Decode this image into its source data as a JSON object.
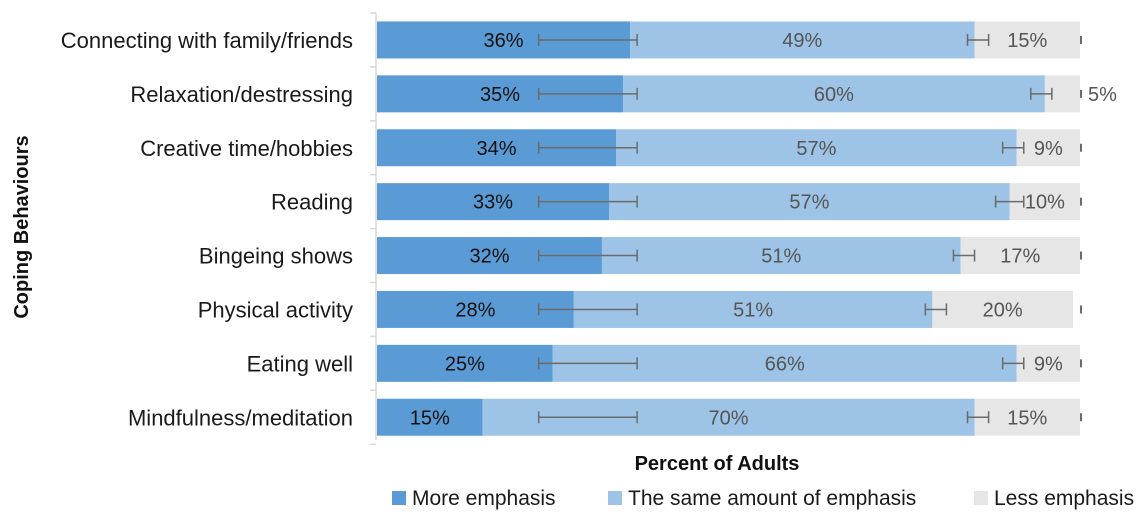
{
  "chart_data": {
    "type": "bar",
    "orientation": "horizontal",
    "stacked": true,
    "xlabel": "Percent of Adults",
    "ylabel": "Coping Behaviours",
    "xlim": [
      0,
      100
    ],
    "grid": false,
    "legend_position": "bottom",
    "categories": [
      "Connecting with family/friends",
      "Relaxation/destressing",
      "Creative time/hobbies",
      "Reading",
      "Bingeing shows",
      "Physical activity",
      "Eating well",
      "Mindfulness/meditation"
    ],
    "series": [
      {
        "name": "More emphasis",
        "color": "#5b9bd5",
        "values": [
          36,
          35,
          34,
          33,
          32,
          28,
          25,
          15
        ],
        "labels": [
          "36%",
          "35%",
          "34%",
          "33%",
          "32%",
          "28%",
          "25%",
          "15%"
        ],
        "error_low": [
          23,
          23,
          23,
          23,
          23,
          23,
          23,
          23
        ],
        "error_high": [
          37,
          37,
          37,
          37,
          37,
          37,
          37,
          37
        ]
      },
      {
        "name": "The same amount of emphasis",
        "color": "#9dc3e6",
        "values": [
          49,
          60,
          57,
          57,
          51,
          51,
          66,
          70
        ],
        "labels": [
          "49%",
          "60%",
          "57%",
          "57%",
          "51%",
          "51%",
          "66%",
          "70%"
        ],
        "error_low": [
          84,
          93,
          89,
          88,
          82,
          78,
          89,
          84
        ],
        "error_high": [
          87,
          96,
          92,
          92,
          85,
          81,
          92,
          87
        ]
      },
      {
        "name": "Less emphasis",
        "color": "#e7e6e6",
        "values": [
          15,
          5,
          9,
          10,
          17,
          20,
          9,
          15
        ],
        "labels": [
          "15%",
          "5%",
          "9%",
          "10%",
          "17%",
          "20%",
          "9%",
          "15%"
        ]
      }
    ]
  }
}
